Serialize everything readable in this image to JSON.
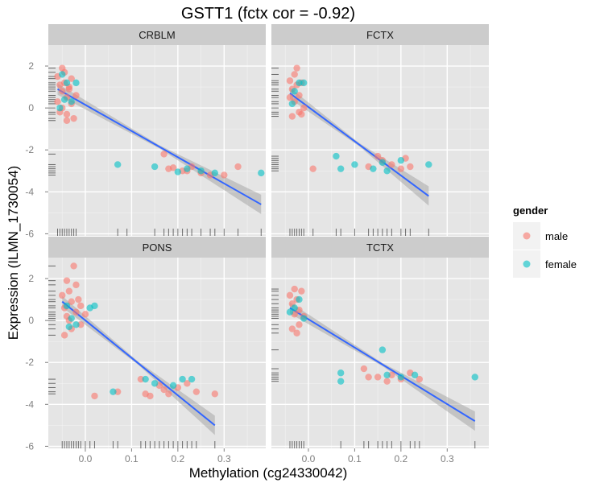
{
  "chart_data": {
    "type": "scatter",
    "title": "GSTT1 (fctx cor = -0.92)",
    "xlabel": "Methylation (cg24330042)",
    "ylabel": "Expression (ILMN_1730054)",
    "xlim": [
      -0.08,
      0.39
    ],
    "ylim": [
      -6.1,
      3.0
    ],
    "x_ticks": [
      0.0,
      0.1,
      0.2,
      0.3
    ],
    "x_tick_labels": [
      "0.0",
      "0.1",
      "0.2",
      "0.3"
    ],
    "y_ticks": [
      -6,
      -4,
      -2,
      0,
      2
    ],
    "y_tick_labels": [
      "-6",
      "-4",
      "-2",
      "0",
      "2"
    ],
    "grid": true,
    "legend": {
      "title": "gender",
      "placement": "right",
      "entries": [
        {
          "label": "male",
          "color": "#F8766D"
        },
        {
          "label": "female",
          "color": "#00BFC4"
        }
      ]
    },
    "colors": {
      "male": "#F8766D",
      "female": "#00BFC4",
      "fit_line": "#3366FF",
      "confidence_band": "#999999",
      "panel_background": "#E5E5E5",
      "strip_background": "#CCCCCC"
    },
    "facets": [
      {
        "name": "CRBLM",
        "fit": {
          "x0": -0.06,
          "y0": 0.9,
          "x1": 0.38,
          "y1": -4.6
        },
        "points": {
          "male": [
            [
              -0.06,
              1.5
            ],
            [
              -0.055,
              1.1
            ],
            [
              -0.05,
              0.8
            ],
            [
              -0.05,
              1.9
            ],
            [
              -0.045,
              1.2
            ],
            [
              -0.04,
              0.5
            ],
            [
              -0.04,
              -0.3
            ],
            [
              -0.035,
              1.0
            ],
            [
              -0.03,
              0.2
            ],
            [
              -0.03,
              1.4
            ],
            [
              -0.025,
              -0.5
            ],
            [
              -0.02,
              0.6
            ],
            [
              -0.05,
              0.0
            ],
            [
              -0.045,
              1.7
            ],
            [
              -0.06,
              0.3
            ],
            [
              -0.04,
              -0.6
            ],
            [
              -0.035,
              0.9
            ],
            [
              -0.055,
              -0.2
            ],
            [
              0.17,
              -2.2
            ],
            [
              0.18,
              -2.9
            ],
            [
              0.19,
              -2.85
            ],
            [
              0.21,
              -3.0
            ],
            [
              0.22,
              -3.0
            ],
            [
              0.23,
              -2.8
            ],
            [
              0.25,
              -3.1
            ],
            [
              0.27,
              -3.2
            ],
            [
              0.3,
              -3.2
            ],
            [
              0.33,
              -2.8
            ]
          ],
          "female": [
            [
              -0.05,
              1.6
            ],
            [
              -0.04,
              1.2
            ],
            [
              -0.03,
              0.3
            ],
            [
              -0.02,
              1.2
            ],
            [
              -0.045,
              0.4
            ],
            [
              -0.055,
              0.0
            ],
            [
              0.07,
              -2.7
            ],
            [
              0.15,
              -2.8
            ],
            [
              0.2,
              -3.05
            ],
            [
              0.22,
              -2.9
            ],
            [
              0.25,
              -3.0
            ],
            [
              0.28,
              -3.1
            ],
            [
              0.38,
              -3.1
            ]
          ]
        },
        "rug_x": [
          -0.06,
          -0.055,
          -0.05,
          -0.045,
          -0.04,
          -0.035,
          -0.03,
          -0.025,
          -0.02,
          0.07,
          0.09,
          0.15,
          0.17,
          0.18,
          0.19,
          0.2,
          0.21,
          0.22,
          0.23,
          0.25,
          0.27,
          0.28,
          0.3,
          0.33,
          0.38
        ],
        "rug_y": [
          1.9,
          1.7,
          1.5,
          1.4,
          1.2,
          1.1,
          1.0,
          0.9,
          0.8,
          0.6,
          0.5,
          0.4,
          0.3,
          0.2,
          0.0,
          -0.2,
          -0.3,
          -0.5,
          -0.6,
          -2.2,
          -2.7,
          -2.8,
          -2.9,
          -3.0,
          -3.1,
          -3.2
        ]
      },
      {
        "name": "FCTX",
        "fit": {
          "x0": -0.04,
          "y0": 0.7,
          "x1": 0.26,
          "y1": -4.2
        },
        "points": {
          "male": [
            [
              -0.04,
              1.3
            ],
            [
              -0.035,
              0.9
            ],
            [
              -0.03,
              1.6
            ],
            [
              -0.03,
              0.3
            ],
            [
              -0.025,
              1.1
            ],
            [
              -0.02,
              0.6
            ],
            [
              -0.02,
              -0.2
            ],
            [
              -0.015,
              1.2
            ],
            [
              -0.01,
              0.0
            ],
            [
              -0.035,
              -0.4
            ],
            [
              -0.025,
              1.9
            ],
            [
              -0.04,
              0.5
            ],
            [
              -0.015,
              -0.3
            ],
            [
              0.01,
              -2.9
            ],
            [
              0.13,
              -2.8
            ],
            [
              0.15,
              -2.3
            ],
            [
              0.16,
              -2.5
            ],
            [
              0.18,
              -2.7
            ],
            [
              0.2,
              -2.9
            ],
            [
              0.21,
              -2.4
            ],
            [
              0.22,
              -2.8
            ]
          ],
          "female": [
            [
              -0.03,
              0.8
            ],
            [
              -0.02,
              1.2
            ],
            [
              -0.01,
              1.2
            ],
            [
              -0.035,
              0.2
            ],
            [
              0.06,
              -2.3
            ],
            [
              0.07,
              -2.9
            ],
            [
              0.1,
              -2.7
            ],
            [
              0.14,
              -2.9
            ],
            [
              0.16,
              -2.6
            ],
            [
              0.17,
              -3.0
            ],
            [
              0.2,
              -2.5
            ],
            [
              0.26,
              -2.7
            ]
          ]
        },
        "rug_x": [
          -0.04,
          -0.035,
          -0.03,
          -0.025,
          -0.02,
          -0.015,
          -0.01,
          0.01,
          0.06,
          0.07,
          0.1,
          0.13,
          0.14,
          0.15,
          0.16,
          0.17,
          0.18,
          0.2,
          0.21,
          0.22,
          0.26
        ],
        "rug_y": [
          1.9,
          1.6,
          1.3,
          1.2,
          1.1,
          0.9,
          0.8,
          0.6,
          0.5,
          0.3,
          0.2,
          0.0,
          -0.2,
          -0.3,
          -0.4,
          -2.3,
          -2.4,
          -2.5,
          -2.6,
          -2.7,
          -2.8,
          -2.9,
          -3.0
        ]
      },
      {
        "name": "PONS",
        "fit": {
          "x0": -0.05,
          "y0": 0.9,
          "x1": 0.28,
          "y1": -5.0
        },
        "points": {
          "male": [
            [
              -0.05,
              1.2
            ],
            [
              -0.045,
              0.6
            ],
            [
              -0.04,
              1.9
            ],
            [
              -0.04,
              0.2
            ],
            [
              -0.035,
              1.4
            ],
            [
              -0.03,
              0.9
            ],
            [
              -0.03,
              -0.4
            ],
            [
              -0.025,
              2.6
            ],
            [
              -0.02,
              1.7
            ],
            [
              -0.02,
              0.4
            ],
            [
              -0.015,
              1.0
            ],
            [
              -0.01,
              0.7
            ],
            [
              -0.01,
              -0.2
            ],
            [
              0.0,
              0.3
            ],
            [
              -0.045,
              -0.7
            ],
            [
              -0.035,
              0.0
            ],
            [
              0.02,
              -3.6
            ],
            [
              0.07,
              -3.4
            ],
            [
              0.12,
              -2.8
            ],
            [
              0.13,
              -3.5
            ],
            [
              0.14,
              -3.6
            ],
            [
              0.16,
              -3.1
            ],
            [
              0.17,
              -3.3
            ],
            [
              0.18,
              -3.5
            ],
            [
              0.2,
              -3.2
            ],
            [
              0.22,
              -3.0
            ],
            [
              0.24,
              -3.4
            ],
            [
              0.28,
              -3.5
            ]
          ],
          "female": [
            [
              -0.04,
              0.7
            ],
            [
              -0.03,
              0.1
            ],
            [
              -0.02,
              -0.2
            ],
            [
              0.01,
              0.6
            ],
            [
              -0.035,
              -0.3
            ],
            [
              0.02,
              0.7
            ],
            [
              0.06,
              -3.4
            ],
            [
              0.13,
              -2.8
            ],
            [
              0.15,
              -3.0
            ],
            [
              0.19,
              -3.1
            ],
            [
              0.21,
              -2.8
            ],
            [
              0.23,
              -2.8
            ]
          ]
        },
        "rug_x": [
          -0.05,
          -0.045,
          -0.04,
          -0.035,
          -0.03,
          -0.025,
          -0.02,
          -0.015,
          -0.01,
          0.0,
          0.01,
          0.02,
          0.06,
          0.07,
          0.12,
          0.13,
          0.14,
          0.15,
          0.16,
          0.17,
          0.18,
          0.19,
          0.2,
          0.21,
          0.22,
          0.23,
          0.24,
          0.28
        ],
        "rug_y": [
          2.6,
          1.9,
          1.7,
          1.4,
          1.2,
          1.0,
          0.9,
          0.7,
          0.6,
          0.4,
          0.3,
          0.2,
          0.1,
          0.0,
          -0.2,
          -0.4,
          -0.7,
          -2.8,
          -3.0,
          -3.2,
          -3.4,
          -3.5
        ]
      },
      {
        "name": "TCTX",
        "fit": {
          "x0": -0.04,
          "y0": 0.6,
          "x1": 0.36,
          "y1": -4.8
        },
        "points": {
          "male": [
            [
              -0.04,
              1.2
            ],
            [
              -0.035,
              0.8
            ],
            [
              -0.03,
              1.5
            ],
            [
              -0.03,
              0.3
            ],
            [
              -0.025,
              1.0
            ],
            [
              -0.02,
              0.5
            ],
            [
              -0.02,
              -0.2
            ],
            [
              -0.015,
              1.4
            ],
            [
              -0.01,
              0.2
            ],
            [
              -0.035,
              -0.4
            ],
            [
              -0.025,
              -0.6
            ],
            [
              0.12,
              -2.3
            ],
            [
              0.13,
              -2.7
            ],
            [
              0.15,
              -2.7
            ],
            [
              0.17,
              -2.9
            ],
            [
              0.18,
              -2.6
            ],
            [
              0.2,
              -2.8
            ],
            [
              0.22,
              -2.5
            ],
            [
              0.24,
              -2.8
            ]
          ],
          "female": [
            [
              -0.03,
              0.6
            ],
            [
              -0.02,
              1.0
            ],
            [
              -0.01,
              0.1
            ],
            [
              -0.04,
              0.4
            ],
            [
              0.07,
              -2.5
            ],
            [
              0.07,
              -2.9
            ],
            [
              0.16,
              -1.4
            ],
            [
              0.17,
              -2.6
            ],
            [
              0.2,
              -2.7
            ],
            [
              0.23,
              -2.6
            ],
            [
              0.36,
              -2.7
            ]
          ]
        },
        "rug_x": [
          -0.04,
          -0.035,
          -0.03,
          -0.025,
          -0.02,
          -0.015,
          -0.01,
          0.07,
          0.12,
          0.13,
          0.15,
          0.16,
          0.17,
          0.18,
          0.2,
          0.22,
          0.23,
          0.24,
          0.36
        ],
        "rug_y": [
          1.5,
          1.4,
          1.2,
          1.0,
          0.8,
          0.6,
          0.5,
          0.4,
          0.3,
          0.2,
          0.1,
          -0.2,
          -0.4,
          -0.6,
          -1.4,
          -2.3,
          -2.5,
          -2.6,
          -2.7,
          -2.8,
          -2.9
        ]
      }
    ]
  }
}
